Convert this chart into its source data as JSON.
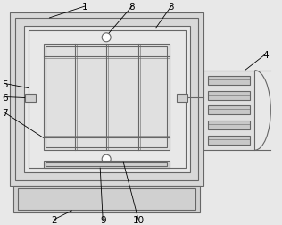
{
  "bg_color": "#e8e8e8",
  "line_color": "#666666",
  "outer_fill": "#e0e0e0",
  "inner_fill": "#d4d4d4",
  "rack_fill": "#f0f0f0",
  "rack_dark": "#b0b0b0",
  "ext_fill": "#e0e0e0",
  "white": "#ffffff",
  "figsize": [
    3.16,
    2.53
  ],
  "dpi": 100,
  "lw_main": 0.8,
  "lw_label": 0.6
}
